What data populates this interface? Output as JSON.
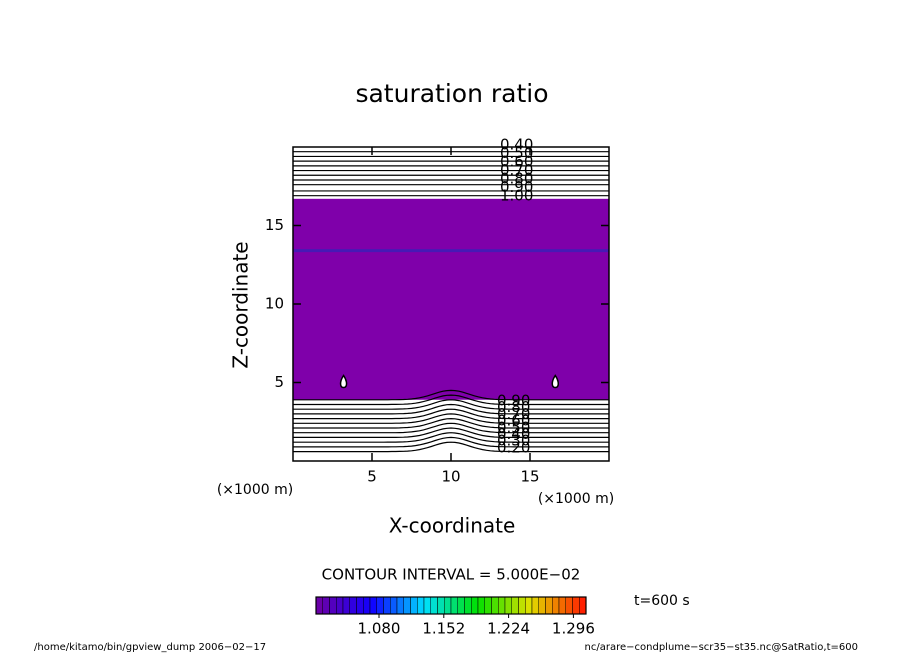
{
  "chart_data": {
    "type": "contour",
    "title": "saturation ratio",
    "xlabel": "X-coordinate",
    "ylabel": "Z-coordinate",
    "axis_unit": "(×1000 m)",
    "xlim": [
      0,
      20
    ],
    "xticks": [
      5,
      10,
      15
    ],
    "ylim": [
      0,
      20
    ],
    "yticks": [
      5,
      10,
      15
    ],
    "saturated_layer": {
      "bottom": 3.9,
      "top": 16.7,
      "color": "#7f00aa"
    },
    "band_line": {
      "z": 13.4,
      "color": "#3a20b8"
    },
    "upper_contour_heights": [
      19.7,
      19.4,
      19.1,
      18.8,
      18.5,
      18.2,
      17.9,
      17.6,
      17.2,
      16.9
    ],
    "lower_contour_heights": [
      3.9,
      3.6,
      3.3,
      3.0,
      2.7,
      2.4,
      2.1,
      1.8,
      1.5,
      1.2,
      0.9,
      0.6
    ],
    "bump": {
      "x": 10,
      "amplitude": 0.6,
      "width": 1.6
    },
    "upper_contour_labels": [
      "0.40",
      "0.50",
      "0.60",
      "0.70",
      "0.80",
      "0.90",
      "1.00"
    ],
    "lower_contour_labels": [
      "0.90",
      "0.80",
      "0.70",
      "0.60",
      "0.50",
      "0.40",
      "0.30",
      "0.20"
    ],
    "small_contours": {
      "x": [
        3.2,
        16.6
      ],
      "z": [
        5.0,
        5.0
      ]
    },
    "contour_interval": "CONTOUR INTERVAL = 5.000E−02",
    "time_label": "t=600 s",
    "colorbar": {
      "lim": [
        1.01,
        1.31
      ],
      "colors": [
        "#6a00a8",
        "#1000ff",
        "#00e0ff",
        "#00e000",
        "#e0e000",
        "#ff2000"
      ],
      "ticks": [
        {
          "value": 1.08,
          "label": "1.080"
        },
        {
          "value": 1.152,
          "label": "1.152"
        },
        {
          "value": 1.224,
          "label": "1.224"
        },
        {
          "value": 1.296,
          "label": "1.296"
        }
      ]
    },
    "footer_left": "/home/kitamo/bin/gpview_dump  2006−02−17",
    "footer_right": "nc/arare−condplume−scr35−st35.nc@SatRatio,t=600"
  }
}
